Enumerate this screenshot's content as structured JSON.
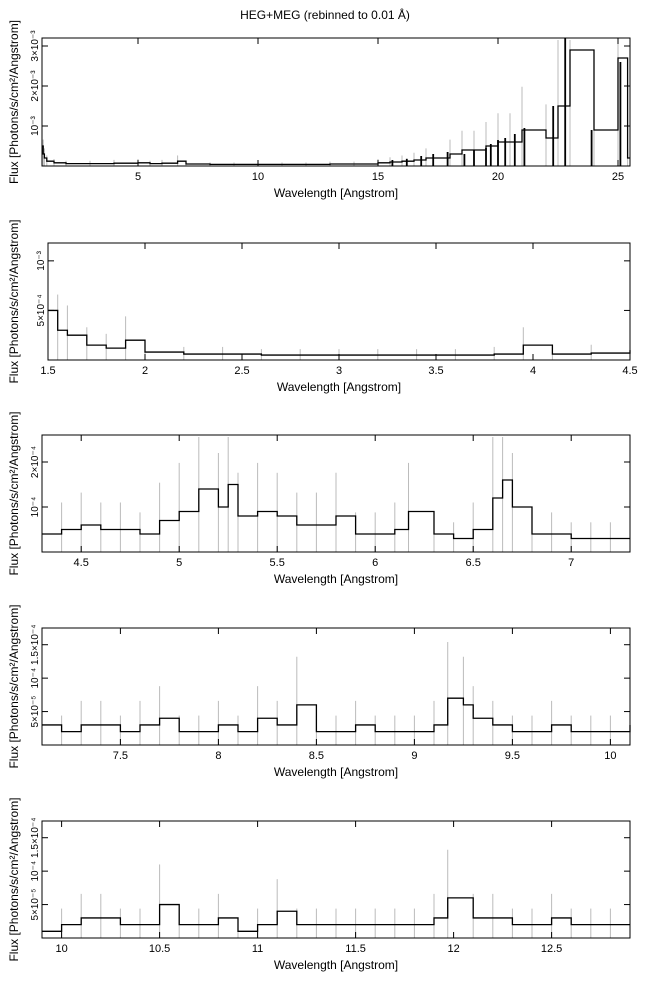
{
  "figure": {
    "title": "HEG+MEG (rebinned to 0.01 Å)"
  },
  "chart_data": [
    {
      "type": "line",
      "style": "histogram-with-error-bars",
      "xlabel": "Wavelength [Angstrom]",
      "ylabel": "Flux [Photons/s/cm²/Angstrom]",
      "xlim": [
        1.0,
        25.5
      ],
      "ylim": [
        0,
        0.0032
      ],
      "xticks": [
        5,
        10,
        15,
        20,
        25
      ],
      "xtick_labels": [
        "5",
        "10",
        "15",
        "20",
        "25"
      ],
      "yticks": [
        0.001,
        0.002,
        0.003
      ],
      "ytick_labels": [
        "10⁻³",
        "2×10⁻³",
        "3×10⁻³"
      ],
      "x": [
        1.0,
        1.05,
        1.1,
        1.2,
        1.5,
        2.0,
        3.0,
        4.0,
        5.0,
        5.5,
        6.0,
        6.65,
        7.0,
        8.0,
        9.0,
        10.0,
        11.0,
        12.0,
        13.0,
        14.0,
        15.0,
        15.5,
        16.0,
        16.5,
        17.0,
        18.0,
        18.5,
        19.0,
        19.5,
        20.0,
        20.5,
        21.0,
        22.0,
        22.5,
        23.0,
        24.0,
        25.0,
        25.4
      ],
      "y": [
        0.0005,
        0.0003,
        0.0002,
        0.00012,
        8e-05,
        6e-05,
        6e-05,
        7e-05,
        8e-05,
        6e-05,
        7e-05,
        0.00012,
        5e-05,
        4e-05,
        4e-05,
        4e-05,
        4e-05,
        4e-05,
        5e-05,
        5e-05,
        8e-05,
        0.0001,
        0.00012,
        0.00015,
        0.0002,
        0.0003,
        0.0004,
        0.0004,
        0.0005,
        0.0006,
        0.0006,
        0.0009,
        0.0007,
        0.0015,
        0.0029,
        0.0009,
        0.0027,
        0.0002
      ],
      "spikes": [
        {
          "x": 15.6,
          "y": 0.00015
        },
        {
          "x": 16.2,
          "y": 0.00018
        },
        {
          "x": 16.8,
          "y": 0.00025
        },
        {
          "x": 17.3,
          "y": 0.0003
        },
        {
          "x": 17.9,
          "y": 0.00035
        },
        {
          "x": 18.6,
          "y": 0.0003
        },
        {
          "x": 19.0,
          "y": 0.0004
        },
        {
          "x": 19.5,
          "y": 0.00045
        },
        {
          "x": 19.7,
          "y": 0.00055
        },
        {
          "x": 20.0,
          "y": 0.00065
        },
        {
          "x": 20.3,
          "y": 0.0007
        },
        {
          "x": 20.7,
          "y": 0.0008
        },
        {
          "x": 21.1,
          "y": 0.00095
        },
        {
          "x": 22.3,
          "y": 0.0015
        },
        {
          "x": 22.8,
          "y": 0.0032
        },
        {
          "x": 23.9,
          "y": 0.0009
        },
        {
          "x": 25.1,
          "y": 0.0026
        }
      ]
    },
    {
      "type": "line",
      "style": "histogram-with-error-bars",
      "xlabel": "Wavelength [Angstrom]",
      "ylabel": "Flux [Photons/s/cm²/Angstrom]",
      "xlim": [
        1.5,
        4.5
      ],
      "ylim": [
        0,
        0.00118
      ],
      "xticks": [
        1.5,
        2,
        2.5,
        3,
        3.5,
        4,
        4.5
      ],
      "xtick_labels": [
        "1.5",
        "2",
        "2.5",
        "3",
        "3.5",
        "4",
        "4.5"
      ],
      "yticks": [
        0.0005,
        0.001
      ],
      "ytick_labels": [
        "5×10⁻⁴",
        "10⁻³"
      ],
      "x": [
        1.5,
        1.55,
        1.6,
        1.7,
        1.8,
        1.9,
        2.0,
        2.2,
        2.4,
        2.6,
        2.8,
        3.0,
        3.2,
        3.4,
        3.6,
        3.8,
        3.95,
        4.1,
        4.3,
        4.5
      ],
      "y": [
        0.0005,
        0.0003,
        0.00025,
        0.00015,
        0.00012,
        0.0002,
        8e-05,
        6e-05,
        6e-05,
        5e-05,
        5e-05,
        5e-05,
        5e-05,
        5e-05,
        5e-05,
        6e-05,
        0.00015,
        6e-05,
        7e-05,
        0.0001
      ]
    },
    {
      "type": "line",
      "style": "histogram-with-error-bars",
      "xlabel": "Wavelength [Angstrom]",
      "ylabel": "Flux [Photons/s/cm²/Angstrom]",
      "xlim": [
        4.3,
        7.3
      ],
      "ylim": [
        0,
        0.00026
      ],
      "xticks": [
        4.5,
        5,
        5.5,
        6,
        6.5,
        7
      ],
      "xtick_labels": [
        "4.5",
        "5",
        "5.5",
        "6",
        "6.5",
        "7"
      ],
      "yticks": [
        0.0001,
        0.0002
      ],
      "ytick_labels": [
        "10⁻⁴",
        "2×10⁻⁴"
      ],
      "x": [
        4.3,
        4.4,
        4.5,
        4.6,
        4.7,
        4.8,
        4.9,
        5.0,
        5.1,
        5.2,
        5.25,
        5.3,
        5.4,
        5.5,
        5.6,
        5.7,
        5.8,
        5.9,
        6.0,
        6.1,
        6.17,
        6.3,
        6.4,
        6.5,
        6.6,
        6.65,
        6.7,
        6.8,
        6.9,
        7.0,
        7.1,
        7.2,
        7.3
      ],
      "y": [
        4e-05,
        5e-05,
        6e-05,
        5e-05,
        5e-05,
        4e-05,
        7e-05,
        9e-05,
        0.00014,
        0.0001,
        0.00015,
        8e-05,
        9e-05,
        8e-05,
        6e-05,
        6e-05,
        8e-05,
        4e-05,
        4e-05,
        5e-05,
        9e-05,
        4e-05,
        3e-05,
        5e-05,
        0.00012,
        0.00016,
        0.0001,
        4e-05,
        4e-05,
        3e-05,
        3e-05,
        3e-05,
        3e-05
      ]
    },
    {
      "type": "line",
      "style": "histogram-with-error-bars",
      "xlabel": "Wavelength [Angstrom]",
      "ylabel": "Flux [Photons/s/cm²/Angstrom]",
      "xlim": [
        7.1,
        10.1
      ],
      "ylim": [
        0,
        0.000175
      ],
      "xticks": [
        7.5,
        8,
        8.5,
        9,
        9.5,
        10
      ],
      "xtick_labels": [
        "7.5",
        "8",
        "8.5",
        "9",
        "9.5",
        "10"
      ],
      "yticks": [
        5e-05,
        0.0001,
        0.00015
      ],
      "ytick_labels": [
        "5×10⁻⁵",
        "10⁻⁴",
        "1.5×10⁻⁴"
      ],
      "x": [
        7.1,
        7.2,
        7.3,
        7.4,
        7.5,
        7.6,
        7.7,
        7.8,
        7.9,
        8.0,
        8.1,
        8.2,
        8.3,
        8.4,
        8.5,
        8.6,
        8.7,
        8.8,
        8.9,
        9.0,
        9.1,
        9.17,
        9.25,
        9.3,
        9.4,
        9.5,
        9.6,
        9.7,
        9.8,
        9.9,
        10.0,
        10.1
      ],
      "y": [
        3e-05,
        2e-05,
        3e-05,
        3e-05,
        2e-05,
        3e-05,
        4e-05,
        2e-05,
        2e-05,
        3e-05,
        2e-05,
        4e-05,
        3e-05,
        6e-05,
        2e-05,
        2e-05,
        3e-05,
        2e-05,
        2e-05,
        2e-05,
        3e-05,
        7e-05,
        6e-05,
        4e-05,
        3e-05,
        2e-05,
        2e-05,
        3e-05,
        2e-05,
        2e-05,
        2e-05,
        3e-05
      ]
    },
    {
      "type": "line",
      "style": "histogram-with-error-bars",
      "xlabel": "Wavelength [Angstrom]",
      "ylabel": "Flux [Photons/s/cm²/Angstrom]",
      "xlim": [
        9.9,
        12.9
      ],
      "ylim": [
        0,
        0.000175
      ],
      "xticks": [
        10,
        10.5,
        11,
        11.5,
        12,
        12.5
      ],
      "xtick_labels": [
        "10",
        "10.5",
        "11",
        "11.5",
        "12",
        "12.5"
      ],
      "yticks": [
        5e-05,
        0.0001,
        0.00015
      ],
      "ytick_labels": [
        "5×10⁻⁵",
        "10⁻⁴",
        "1.5×10⁻⁴"
      ],
      "x": [
        9.9,
        10.0,
        10.1,
        10.2,
        10.3,
        10.4,
        10.5,
        10.6,
        10.7,
        10.8,
        10.9,
        11.0,
        11.1,
        11.2,
        11.3,
        11.4,
        11.5,
        11.6,
        11.7,
        11.8,
        11.9,
        11.97,
        12.1,
        12.2,
        12.3,
        12.4,
        12.5,
        12.6,
        12.7,
        12.8,
        12.9
      ],
      "y": [
        1e-05,
        2e-05,
        3e-05,
        3e-05,
        2e-05,
        2e-05,
        5e-05,
        2e-05,
        2e-05,
        3e-05,
        1e-05,
        2e-05,
        4e-05,
        2e-05,
        2e-05,
        2e-05,
        2e-05,
        2e-05,
        2e-05,
        2e-05,
        3e-05,
        6e-05,
        3e-05,
        3e-05,
        2e-05,
        2e-05,
        3e-05,
        2e-05,
        2e-05,
        2e-05,
        2e-05
      ]
    }
  ]
}
